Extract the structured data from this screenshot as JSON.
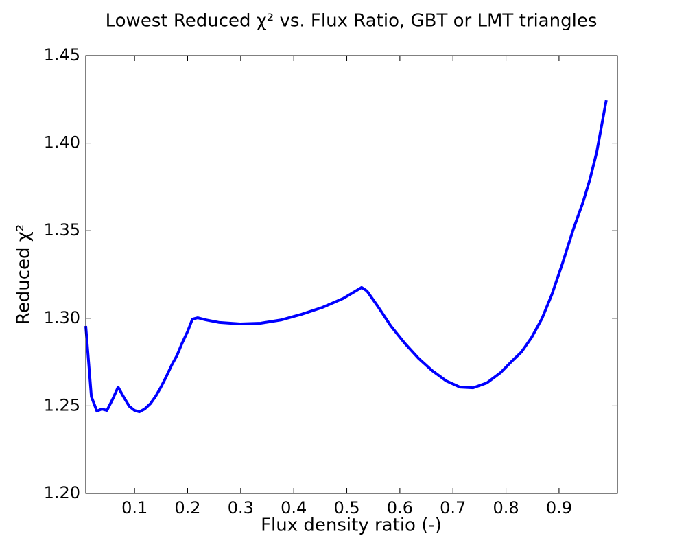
{
  "chart_data": {
    "type": "line",
    "title": "Lowest Reduced χ² vs. Flux Ratio, GBT or LMT triangles",
    "x_label": "Flux density ratio (-)",
    "y_label": "Reduced χ²",
    "x": [
      0.008,
      0.0186,
      0.029,
      0.038,
      0.048,
      0.059,
      0.069,
      0.079,
      0.09,
      0.1,
      0.109,
      0.119,
      0.13,
      0.14,
      0.149,
      0.159,
      0.17,
      0.18,
      0.189,
      0.2,
      0.209,
      0.219,
      0.234,
      0.26,
      0.299,
      0.338,
      0.377,
      0.415,
      0.454,
      0.493,
      0.528,
      0.538,
      0.558,
      0.583,
      0.609,
      0.635,
      0.661,
      0.687,
      0.713,
      0.738,
      0.764,
      0.79,
      0.81,
      0.829,
      0.848,
      0.868,
      0.887,
      0.906,
      0.927,
      0.945,
      0.958,
      0.971,
      0.989
    ],
    "series": [
      {
        "color": "#0000ff",
        "values": [
          1.2956,
          1.2553,
          1.247,
          1.2482,
          1.2474,
          1.254,
          1.2607,
          1.2553,
          1.2498,
          1.2474,
          1.2466,
          1.2482,
          1.2513,
          1.2556,
          1.2603,
          1.2662,
          1.2733,
          1.2788,
          1.2854,
          1.2925,
          1.2995,
          1.3003,
          1.2991,
          1.2976,
          1.2968,
          1.2972,
          1.2991,
          1.3023,
          1.3062,
          1.3113,
          1.3176,
          1.3156,
          1.307,
          1.2956,
          1.2858,
          1.2772,
          1.2701,
          1.2643,
          1.2607,
          1.2603,
          1.2631,
          1.269,
          1.2752,
          1.2807,
          1.2889,
          1.2999,
          1.314,
          1.3309,
          1.3509,
          1.3661,
          1.3791,
          1.3948,
          1.4245
        ]
      }
    ],
    "xlim": [
      0.008,
      1.01
    ],
    "ylim": [
      1.2,
      1.45
    ],
    "xticks": [
      0.1,
      0.2,
      0.3,
      0.4,
      0.5,
      0.6,
      0.7,
      0.8,
      0.9
    ],
    "yticks": [
      {
        "value": 1.2,
        "label": "1.20"
      },
      1.25,
      {
        "value": 1.3,
        "label": "1.30"
      },
      1.35,
      {
        "value": 1.4,
        "label": "1.40"
      },
      1.45
    ]
  }
}
